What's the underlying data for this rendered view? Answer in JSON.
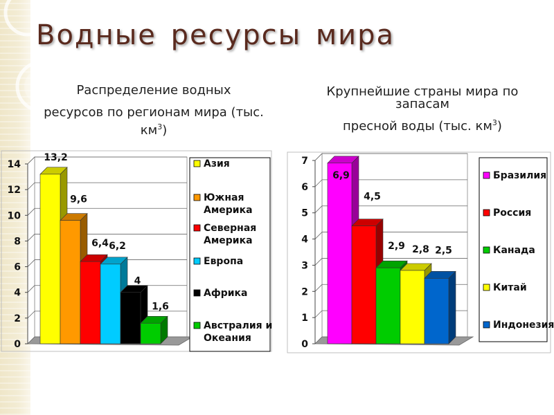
{
  "slide": {
    "title": "Водные ресурсы мира"
  },
  "left_chart": {
    "subtitle_line1": "Распределение водных",
    "subtitle_line2": "ресурсов по регионам мира (тыс.",
    "subtitle_line3": "км",
    "subtitle_sup": "3",
    "subtitle_close": ")"
  },
  "right_chart": {
    "subtitle_line1": "Крупнейшие страны мира по",
    "subtitle_line2": "запасам",
    "subtitle_line3": "пресной воды (тыс. км",
    "subtitle_sup": "3",
    "subtitle_close": ")"
  },
  "chart_data": [
    {
      "type": "bar",
      "categories": [
        "Азия",
        "Южная Америка",
        "Северная Америка",
        "Европа",
        "Африка",
        "Австралия и Океания"
      ],
      "values": [
        13.2,
        9.6,
        6.4,
        6.2,
        4,
        1.6
      ],
      "value_labels": [
        "13,2",
        "9,6",
        "6,4",
        "6,2",
        "4",
        "1,6"
      ],
      "colors": [
        "#ffff00",
        "#ff9900",
        "#ff0000",
        "#00ccff",
        "#000000",
        "#00cc00"
      ],
      "ylim": [
        0,
        14
      ],
      "yticks": [
        "0",
        "2",
        "4",
        "6",
        "8",
        "10",
        "12",
        "14"
      ],
      "legend_position": "right",
      "legend_labels": [
        [
          "Азия"
        ],
        [
          "Южная",
          "Америка"
        ],
        [
          "Северная",
          "Америка"
        ],
        [
          "Европа"
        ],
        [
          "Африка"
        ],
        [
          "Австралия и",
          "Океания"
        ]
      ],
      "grid": true,
      "style": "3d"
    },
    {
      "type": "bar",
      "categories": [
        "Бразилия",
        "Россия",
        "Канада",
        "Китай",
        "Индонезия"
      ],
      "values": [
        6.9,
        4.5,
        2.9,
        2.8,
        2.5
      ],
      "value_labels": [
        "6,9",
        "4,5",
        "2,9",
        "2,8",
        "2,5"
      ],
      "colors": [
        "#ff00ff",
        "#ff0000",
        "#00cc00",
        "#ffff00",
        "#0066cc"
      ],
      "ylim": [
        0,
        7
      ],
      "yticks": [
        "0",
        "1",
        "2",
        "3",
        "4",
        "5",
        "6",
        "7"
      ],
      "legend_position": "right",
      "legend_labels": [
        [
          "Бразилия"
        ],
        [
          "Россия"
        ],
        [
          "Канада"
        ],
        [
          "Китай"
        ],
        [
          "Индонезия"
        ]
      ],
      "grid": true,
      "style": "3d"
    }
  ]
}
